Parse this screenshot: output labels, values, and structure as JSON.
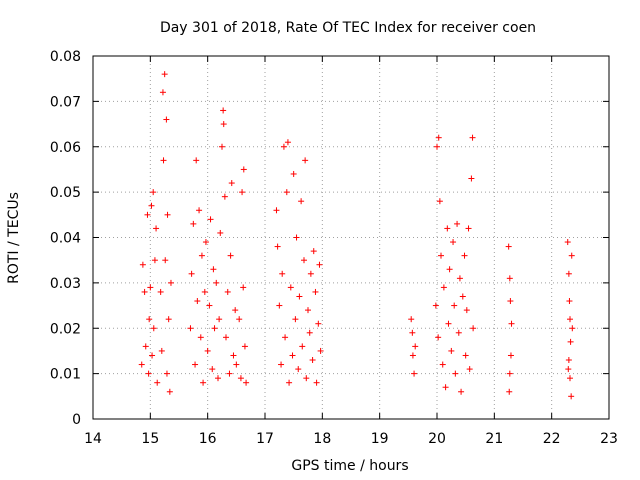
{
  "chart_data": {
    "type": "scatter",
    "title": "Day 301 of 2018, Rate Of TEC Index for receiver coen",
    "xlabel": "GPS time / hours",
    "ylabel": "ROTI / TECUs",
    "xlim": [
      14,
      23
    ],
    "ylim": [
      0,
      0.08
    ],
    "xticks": [
      "14",
      "15",
      "16",
      "17",
      "18",
      "19",
      "20",
      "21",
      "22",
      "23"
    ],
    "yticks": [
      "0",
      "0.01",
      "0.02",
      "0.03",
      "0.04",
      "0.05",
      "0.06",
      "0.07",
      "0.08"
    ],
    "grid": true,
    "marker": "+",
    "color": "#ff0000",
    "series": [
      {
        "name": "ROTI",
        "points": [
          [
            14.85,
            0.012
          ],
          [
            14.87,
            0.034
          ],
          [
            14.9,
            0.028
          ],
          [
            14.92,
            0.016
          ],
          [
            14.95,
            0.045
          ],
          [
            14.97,
            0.01
          ],
          [
            14.98,
            0.022
          ],
          [
            15.0,
            0.029
          ],
          [
            15.02,
            0.047
          ],
          [
            15.03,
            0.014
          ],
          [
            15.05,
            0.05
          ],
          [
            15.06,
            0.02
          ],
          [
            15.08,
            0.035
          ],
          [
            15.1,
            0.042
          ],
          [
            15.12,
            0.008
          ],
          [
            15.18,
            0.028
          ],
          [
            15.2,
            0.015
          ],
          [
            15.22,
            0.072
          ],
          [
            15.23,
            0.057
          ],
          [
            15.25,
            0.076
          ],
          [
            15.26,
            0.035
          ],
          [
            15.28,
            0.066
          ],
          [
            15.29,
            0.01
          ],
          [
            15.3,
            0.045
          ],
          [
            15.32,
            0.022
          ],
          [
            15.34,
            0.006
          ],
          [
            15.36,
            0.03
          ],
          [
            15.7,
            0.02
          ],
          [
            15.72,
            0.032
          ],
          [
            15.75,
            0.043
          ],
          [
            15.78,
            0.012
          ],
          [
            15.8,
            0.057
          ],
          [
            15.82,
            0.026
          ],
          [
            15.85,
            0.046
          ],
          [
            15.88,
            0.018
          ],
          [
            15.9,
            0.036
          ],
          [
            15.92,
            0.008
          ],
          [
            15.95,
            0.028
          ],
          [
            15.97,
            0.039
          ],
          [
            16.0,
            0.015
          ],
          [
            16.03,
            0.025
          ],
          [
            16.05,
            0.044
          ],
          [
            16.08,
            0.011
          ],
          [
            16.1,
            0.033
          ],
          [
            16.12,
            0.02
          ],
          [
            16.15,
            0.03
          ],
          [
            16.18,
            0.009
          ],
          [
            16.2,
            0.022
          ],
          [
            16.22,
            0.041
          ],
          [
            16.25,
            0.06
          ],
          [
            16.27,
            0.068
          ],
          [
            16.28,
            0.065
          ],
          [
            16.3,
            0.049
          ],
          [
            16.32,
            0.018
          ],
          [
            16.35,
            0.028
          ],
          [
            16.38,
            0.01
          ],
          [
            16.4,
            0.036
          ],
          [
            16.42,
            0.052
          ],
          [
            16.45,
            0.014
          ],
          [
            16.48,
            0.024
          ],
          [
            16.5,
            0.012
          ],
          [
            16.55,
            0.022
          ],
          [
            16.58,
            0.009
          ],
          [
            16.6,
            0.05
          ],
          [
            16.62,
            0.029
          ],
          [
            16.63,
            0.055
          ],
          [
            16.65,
            0.016
          ],
          [
            16.67,
            0.008
          ],
          [
            17.2,
            0.046
          ],
          [
            17.22,
            0.038
          ],
          [
            17.25,
            0.025
          ],
          [
            17.28,
            0.012
          ],
          [
            17.3,
            0.032
          ],
          [
            17.33,
            0.06
          ],
          [
            17.35,
            0.018
          ],
          [
            17.38,
            0.05
          ],
          [
            17.4,
            0.061
          ],
          [
            17.42,
            0.008
          ],
          [
            17.45,
            0.029
          ],
          [
            17.48,
            0.014
          ],
          [
            17.5,
            0.054
          ],
          [
            17.53,
            0.022
          ],
          [
            17.55,
            0.04
          ],
          [
            17.58,
            0.011
          ],
          [
            17.6,
            0.027
          ],
          [
            17.63,
            0.048
          ],
          [
            17.65,
            0.016
          ],
          [
            17.68,
            0.035
          ],
          [
            17.7,
            0.057
          ],
          [
            17.72,
            0.009
          ],
          [
            17.75,
            0.024
          ],
          [
            17.78,
            0.019
          ],
          [
            17.8,
            0.032
          ],
          [
            17.83,
            0.013
          ],
          [
            17.85,
            0.037
          ],
          [
            17.88,
            0.028
          ],
          [
            17.9,
            0.008
          ],
          [
            17.93,
            0.021
          ],
          [
            17.95,
            0.034
          ],
          [
            17.97,
            0.015
          ],
          [
            19.55,
            0.022
          ],
          [
            19.57,
            0.019
          ],
          [
            19.58,
            0.014
          ],
          [
            19.6,
            0.01
          ],
          [
            19.62,
            0.016
          ],
          [
            19.98,
            0.025
          ],
          [
            20.0,
            0.06
          ],
          [
            20.02,
            0.018
          ],
          [
            20.03,
            0.062
          ],
          [
            20.05,
            0.048
          ],
          [
            20.07,
            0.036
          ],
          [
            20.1,
            0.012
          ],
          [
            20.12,
            0.029
          ],
          [
            20.15,
            0.007
          ],
          [
            20.18,
            0.042
          ],
          [
            20.2,
            0.021
          ],
          [
            20.22,
            0.033
          ],
          [
            20.25,
            0.015
          ],
          [
            20.28,
            0.039
          ],
          [
            20.3,
            0.025
          ],
          [
            20.32,
            0.01
          ],
          [
            20.35,
            0.043
          ],
          [
            20.38,
            0.019
          ],
          [
            20.4,
            0.031
          ],
          [
            20.42,
            0.006
          ],
          [
            20.45,
            0.027
          ],
          [
            20.48,
            0.036
          ],
          [
            20.5,
            0.014
          ],
          [
            20.52,
            0.024
          ],
          [
            20.55,
            0.042
          ],
          [
            20.57,
            0.011
          ],
          [
            20.6,
            0.053
          ],
          [
            20.62,
            0.062
          ],
          [
            20.63,
            0.02
          ],
          [
            21.25,
            0.038
          ],
          [
            21.27,
            0.031
          ],
          [
            21.28,
            0.026
          ],
          [
            21.3,
            0.021
          ],
          [
            21.29,
            0.014
          ],
          [
            21.27,
            0.01
          ],
          [
            21.26,
            0.006
          ],
          [
            22.28,
            0.039
          ],
          [
            22.3,
            0.032
          ],
          [
            22.31,
            0.026
          ],
          [
            22.32,
            0.022
          ],
          [
            22.33,
            0.017
          ],
          [
            22.3,
            0.013
          ],
          [
            22.32,
            0.009
          ],
          [
            22.34,
            0.005
          ],
          [
            22.35,
            0.036
          ],
          [
            22.36,
            0.02
          ],
          [
            22.29,
            0.011
          ]
        ]
      }
    ]
  }
}
